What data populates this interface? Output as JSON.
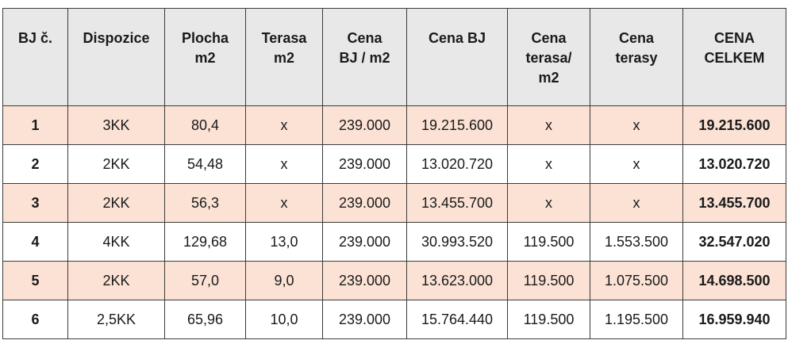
{
  "table": {
    "headers": [
      [
        "BJ č."
      ],
      [
        "Dispozice"
      ],
      [
        "Plocha",
        "m2"
      ],
      [
        "Terasa",
        "m2"
      ],
      [
        "Cena",
        "BJ / m2"
      ],
      [
        "Cena BJ"
      ],
      [
        "Cena",
        "terasa/",
        "m2"
      ],
      [
        "Cena",
        "terasy"
      ],
      [
        "CENA",
        "CELKEM"
      ]
    ],
    "rows": [
      [
        "1",
        "3KK",
        "80,4",
        "x",
        "239.000",
        "19.215.600",
        "x",
        "x",
        "19.215.600"
      ],
      [
        "2",
        "2KK",
        "54,48",
        "x",
        "239.000",
        "13.020.720",
        "x",
        "x",
        "13.020.720"
      ],
      [
        "3",
        "2KK",
        "56,3",
        "x",
        "239.000",
        "13.455.700",
        "x",
        "x",
        "13.455.700"
      ],
      [
        "4",
        "4KK",
        "129,68",
        "13,0",
        "239.000",
        "30.993.520",
        "119.500",
        "1.553.500",
        "32.547.020"
      ],
      [
        "5",
        "2KK",
        "57,0",
        "9,0",
        "239.000",
        "13.623.000",
        "119.500",
        "1.075.500",
        "14.698.500"
      ],
      [
        "6",
        "2,5KK",
        "65,96",
        "10,0",
        "239.000",
        "15.764.440",
        "119.500",
        "1.195.500",
        "16.959.940"
      ]
    ],
    "colors": {
      "header_bg": "#e8e8e8",
      "odd_row_bg": "#fbe2d5",
      "even_row_bg": "#ffffff",
      "border": "#3a3a3a"
    }
  }
}
